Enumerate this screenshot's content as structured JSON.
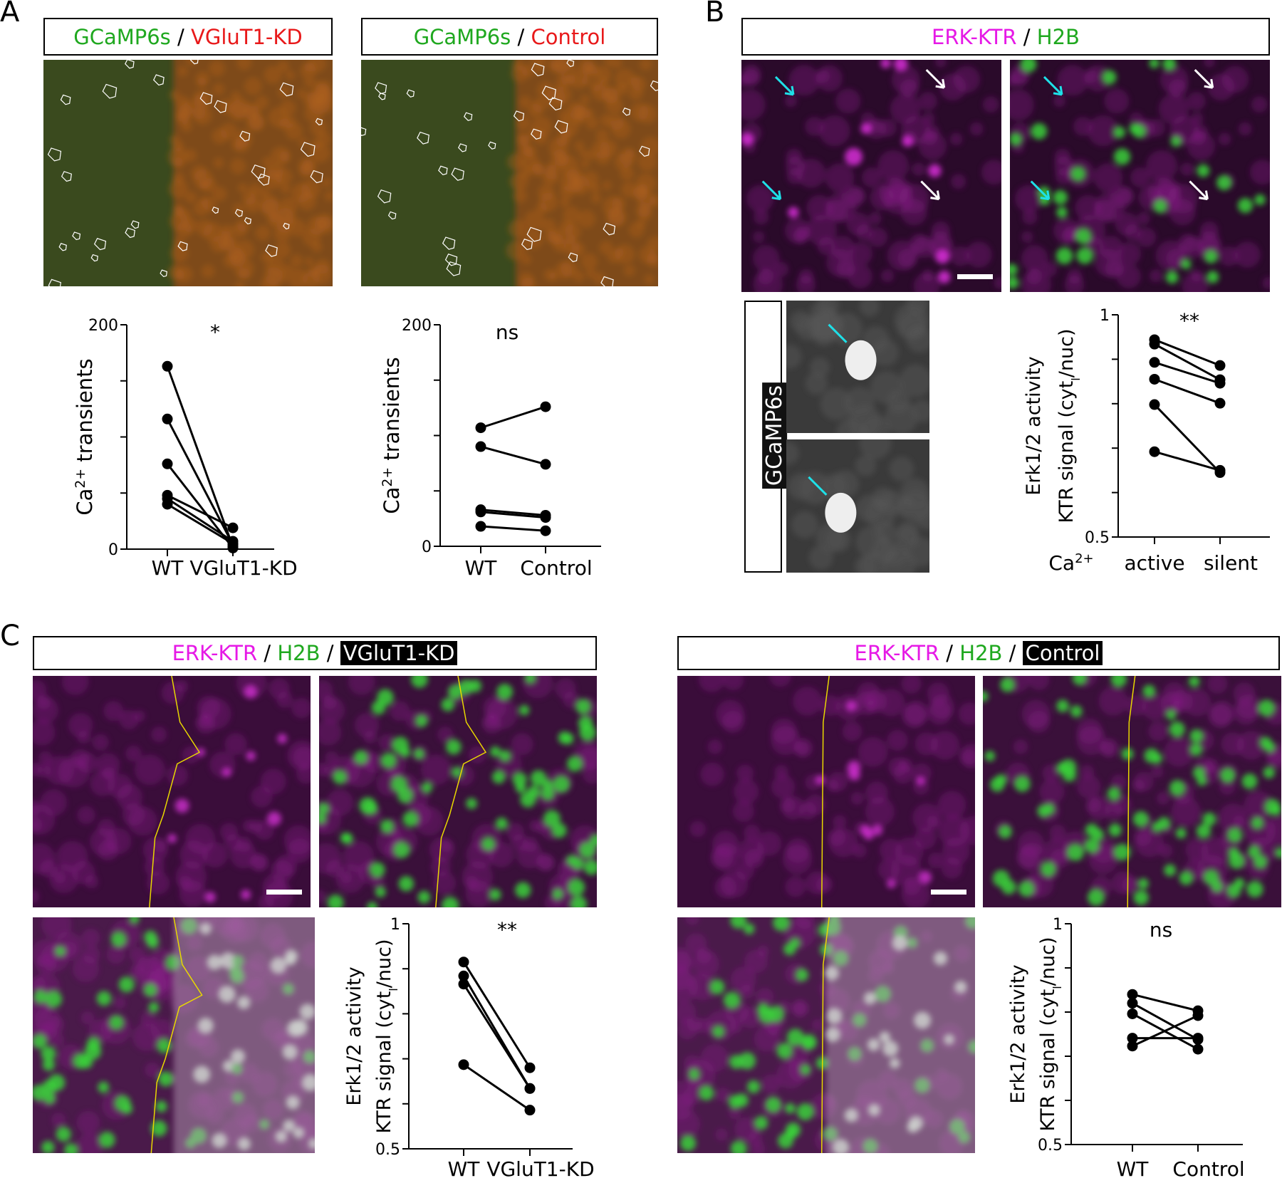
{
  "panel_labels": [
    "A",
    "B",
    "C"
  ],
  "panel_a": {
    "headers": [
      [
        {
          "text": "GCaMP6s",
          "color": "#1fa81f"
        },
        {
          "text": " / ",
          "color": "#000000"
        },
        {
          "text": "VGluT1-KD",
          "color": "#e8191a"
        }
      ],
      [
        {
          "text": "GCaMP6s",
          "color": "#1fa81f"
        },
        {
          "text": " / ",
          "color": "#000000"
        },
        {
          "text": "Control",
          "color": "#e8191a"
        }
      ]
    ]
  },
  "panel_b": {
    "header": [
      {
        "text": "ERK-KTR",
        "color": "#e619e6"
      },
      {
        "text": " / ",
        "color": "#000000"
      },
      {
        "text": "H2B",
        "color": "#1fa81f"
      }
    ],
    "inset_label": "GCaMP6s"
  },
  "panel_c": {
    "headers": [
      [
        {
          "text": "ERK-KTR",
          "color": "#e619e6"
        },
        {
          "text": " / ",
          "color": "#000000"
        },
        {
          "text": "H2B",
          "color": "#1fa81f"
        },
        {
          "text": " / ",
          "color": "#000000"
        },
        {
          "text": "VGluT1-KD",
          "color": "#ffffff",
          "inverse": true
        }
      ],
      [
        {
          "text": "ERK-KTR",
          "color": "#e619e6"
        },
        {
          "text": " / ",
          "color": "#000000"
        },
        {
          "text": "H2B",
          "color": "#1fa81f"
        },
        {
          "text": " / ",
          "color": "#000000"
        },
        {
          "text": "Control",
          "color": "#ffffff",
          "inverse": true
        }
      ]
    ]
  },
  "chart_data": [
    {
      "id": "a1",
      "type": "line",
      "categories": [
        "WT",
        "VGluT1-KD"
      ],
      "ylabel": {
        "base": "Ca",
        "sup": "2+",
        "rest": " transients"
      },
      "ylim": [
        0,
        200
      ],
      "yticks_labeled": [
        "0",
        "200"
      ],
      "ytick_step": 50,
      "significance": "*",
      "pairs": [
        [
          163,
          2
        ],
        [
          116,
          4
        ],
        [
          76,
          1
        ],
        [
          48,
          19
        ],
        [
          45,
          7
        ],
        [
          40,
          5
        ]
      ]
    },
    {
      "id": "a2",
      "type": "line",
      "categories": [
        "WT",
        "Control"
      ],
      "ylabel": {
        "base": "Ca",
        "sup": "2+",
        "rest": " transients"
      },
      "ylim": [
        0,
        200
      ],
      "yticks_labeled": [
        "0",
        "200"
      ],
      "ytick_step": 50,
      "significance": "ns",
      "pairs": [
        [
          107,
          126
        ],
        [
          90,
          74
        ],
        [
          33,
          28
        ],
        [
          31,
          26
        ],
        [
          18,
          14
        ]
      ]
    },
    {
      "id": "b",
      "type": "line",
      "categories": [
        "active",
        "silent"
      ],
      "xgroup_label": {
        "base": "Ca",
        "sup": "2+"
      },
      "ylabel_lines": [
        "Erk1/2 activity",
        {
          "base": "KTR signal (cyt",
          "sub": "l",
          "rest": "/nuc)"
        }
      ],
      "ylim": [
        0.5,
        1
      ],
      "yticks_labeled": [
        "0.5",
        "1"
      ],
      "ytick_step": 0.1,
      "significance": "**",
      "pairs": [
        [
          0.944,
          0.886
        ],
        [
          0.934,
          0.854
        ],
        [
          0.893,
          0.846
        ],
        [
          0.855,
          0.801
        ],
        [
          0.798,
          0.645
        ],
        [
          0.692,
          0.65
        ]
      ]
    },
    {
      "id": "c1",
      "type": "line",
      "categories": [
        "WT",
        "VGluT1-KD"
      ],
      "ylabel_lines": [
        "Erk1/2 activity",
        {
          "base": "KTR signal (cyt",
          "sub": "l",
          "rest": "/nuc)"
        }
      ],
      "ylim": [
        0.5,
        1
      ],
      "yticks_labeled": [
        "0.5",
        "1"
      ],
      "ytick_step": 0.1,
      "significance": "**",
      "pairs": [
        [
          0.915,
          0.68
        ],
        [
          0.884,
          0.634
        ],
        [
          0.866,
          0.634
        ],
        [
          0.687,
          0.586
        ]
      ]
    },
    {
      "id": "c2",
      "type": "line",
      "categories": [
        "WT",
        "Control"
      ],
      "ylabel_lines": [
        "Erk1/2 activity",
        {
          "base": "KTR signal (cyt",
          "sub": "l",
          "rest": "/nuc)"
        }
      ],
      "ylim": [
        0.5,
        1
      ],
      "yticks_labeled": [
        "0.5",
        "1"
      ],
      "ytick_step": 0.1,
      "significance": "ns",
      "pairs": [
        [
          0.84,
          0.803
        ],
        [
          0.82,
          0.738
        ],
        [
          0.796,
          0.716
        ],
        [
          0.741,
          0.741
        ],
        [
          0.723,
          0.792
        ]
      ]
    }
  ]
}
